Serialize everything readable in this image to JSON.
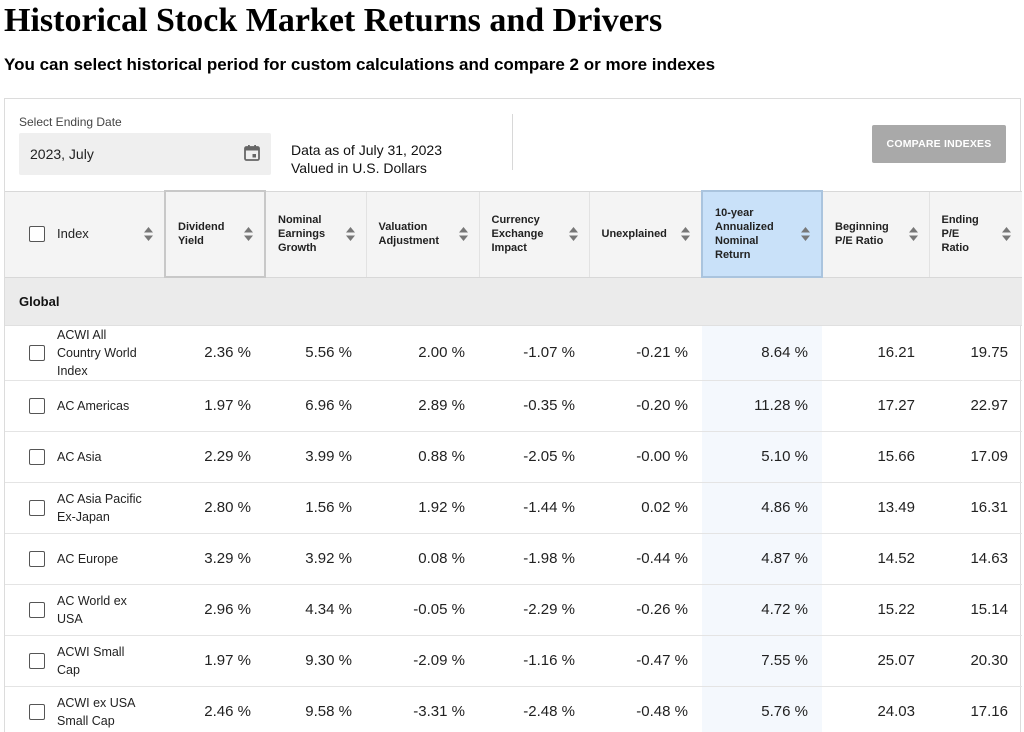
{
  "header": {
    "title": "Historical Stock Market Returns and Drivers",
    "subtitle": "You can select historical period for custom calculations and compare 2 or more indexes"
  },
  "controls": {
    "date_label": "Select Ending Date",
    "date_value": "2023, July",
    "data_as_of": "Data as of July 31, 2023",
    "currency_note": "Valued in U.S. Dollars",
    "compare_label": "COMPARE INDEXES"
  },
  "table": {
    "columns": [
      {
        "key": "index",
        "label": "Index"
      },
      {
        "key": "dividend_yield",
        "label": "Dividend Yield"
      },
      {
        "key": "nominal_earnings_growth",
        "label": "Nominal Earnings Growth"
      },
      {
        "key": "valuation_adjustment",
        "label": "Valuation Adjustment"
      },
      {
        "key": "currency_exchange_impact",
        "label": "Currency Exchange Impact"
      },
      {
        "key": "unexplained",
        "label": "Unexplained"
      },
      {
        "key": "ten_year_return",
        "label": "10-year Annualized Nominal Return"
      },
      {
        "key": "beginning_pe",
        "label": "Beginning P/E Ratio"
      },
      {
        "key": "ending_pe",
        "label": "Ending P/E Ratio"
      }
    ],
    "group_label": "Global",
    "rows": [
      {
        "name": "ACWI All Country World Index",
        "values": [
          "2.36 %",
          "5.56 %",
          "2.00 %",
          "-1.07 %",
          "-0.21 %",
          "8.64 %",
          "16.21",
          "19.75"
        ]
      },
      {
        "name": "AC Americas",
        "values": [
          "1.97 %",
          "6.96 %",
          "2.89 %",
          "-0.35 %",
          "-0.20 %",
          "11.28 %",
          "17.27",
          "22.97"
        ]
      },
      {
        "name": "AC Asia",
        "values": [
          "2.29 %",
          "3.99 %",
          "0.88 %",
          "-2.05 %",
          "-0.00 %",
          "5.10 %",
          "15.66",
          "17.09"
        ]
      },
      {
        "name": "AC Asia Pacific Ex-Japan",
        "values": [
          "2.80 %",
          "1.56 %",
          "1.92 %",
          "-1.44 %",
          "0.02 %",
          "4.86 %",
          "13.49",
          "16.31"
        ]
      },
      {
        "name": "AC Europe",
        "values": [
          "3.29 %",
          "3.92 %",
          "0.08 %",
          "-1.98 %",
          "-0.44 %",
          "4.87 %",
          "14.52",
          "14.63"
        ]
      },
      {
        "name": "AC World ex USA",
        "values": [
          "2.96 %",
          "4.34 %",
          "-0.05 %",
          "-2.29 %",
          "-0.26 %",
          "4.72 %",
          "15.22",
          "15.14"
        ]
      },
      {
        "name": "ACWI Small Cap",
        "values": [
          "1.97 %",
          "9.30 %",
          "-2.09 %",
          "-1.16 %",
          "-0.47 %",
          "7.55 %",
          "25.07",
          "20.30"
        ]
      },
      {
        "name": "ACWI ex USA Small Cap",
        "values": [
          "2.46 %",
          "9.58 %",
          "-3.31 %",
          "-2.48 %",
          "-0.48 %",
          "5.76 %",
          "24.03",
          "17.16"
        ]
      }
    ]
  },
  "colors": {
    "highlight_column": "#c9e1f9",
    "compare_button": "#a9a9a9",
    "group_band": "#ebebeb"
  },
  "icons": {
    "date_picker": "calendar-icon",
    "sort": "sort-icon"
  }
}
